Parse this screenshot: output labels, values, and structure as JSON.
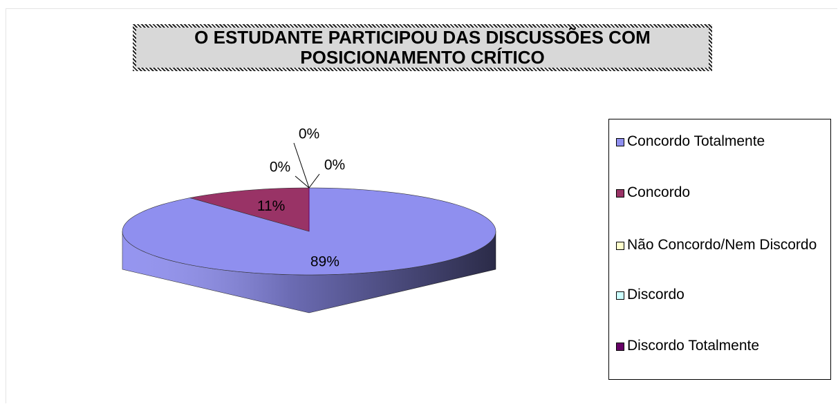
{
  "chart_data": {
    "type": "pie",
    "title": "O ESTUDANTE PARTICIPOU DAS DISCUSSÕES COM\nPOSICIONAMENTO CRÍTICO",
    "categories": [
      "Concordo Totalmente",
      "Concordo",
      "Não Concordo/Nem Discordo",
      "Discordo",
      "Discordo Totalmente"
    ],
    "values": [
      89,
      11,
      0,
      0,
      0
    ],
    "value_labels": [
      "89%",
      "11%",
      "0%",
      "0%",
      "0%"
    ],
    "colors": [
      "#8f8fef",
      "#993366",
      "#ffffcc",
      "#ccffff",
      "#660066"
    ],
    "legend": "right"
  }
}
